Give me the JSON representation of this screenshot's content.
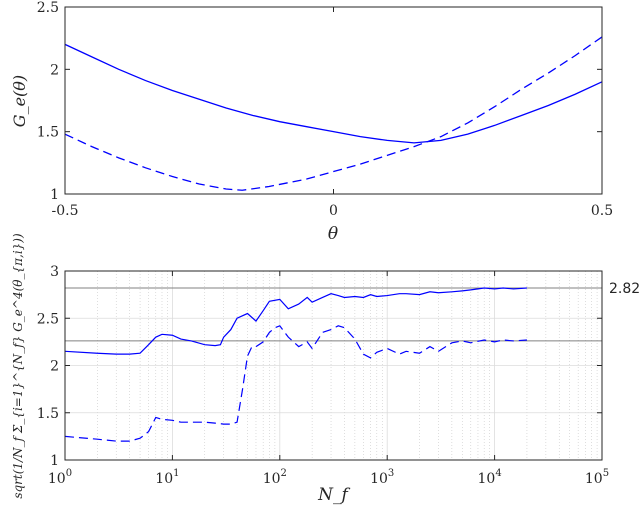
{
  "chart_data": [
    {
      "type": "line",
      "xlabel": "θ",
      "ylabel": "G_e(θ)",
      "xlim": [
        -0.5,
        0.5
      ],
      "ylim": [
        1,
        2.5
      ],
      "xticks": [
        -0.5,
        0,
        0.5
      ],
      "xtick_labels": [
        "-0.5",
        "0",
        "0.5"
      ],
      "yticks": [
        1,
        1.5,
        2,
        2.5
      ],
      "ytick_labels": [
        "1",
        "1.5",
        "2",
        "2.5"
      ],
      "grid": false,
      "color": "#0000ff",
      "series": [
        {
          "style": "solid",
          "x": [
            -0.5,
            -0.45,
            -0.4,
            -0.35,
            -0.3,
            -0.25,
            -0.2,
            -0.15,
            -0.1,
            -0.05,
            0,
            0.05,
            0.1,
            0.15,
            0.2,
            0.25,
            0.3,
            0.35,
            0.4,
            0.45,
            0.5
          ],
          "y": [
            2.2,
            2.1,
            2.0,
            1.91,
            1.83,
            1.76,
            1.69,
            1.63,
            1.58,
            1.54,
            1.5,
            1.46,
            1.43,
            1.41,
            1.43,
            1.48,
            1.55,
            1.63,
            1.71,
            1.8,
            1.9
          ]
        },
        {
          "style": "dashed",
          "x": [
            -0.5,
            -0.45,
            -0.4,
            -0.35,
            -0.3,
            -0.25,
            -0.2,
            -0.17,
            -0.12,
            -0.05,
            0,
            0.05,
            0.1,
            0.15,
            0.2,
            0.25,
            0.3,
            0.35,
            0.4,
            0.45,
            0.5
          ],
          "y": [
            1.48,
            1.38,
            1.29,
            1.21,
            1.14,
            1.08,
            1.04,
            1.03,
            1.06,
            1.12,
            1.18,
            1.24,
            1.31,
            1.38,
            1.46,
            1.57,
            1.7,
            1.84,
            1.97,
            2.11,
            2.26
          ]
        }
      ]
    },
    {
      "type": "line",
      "xlabel": "N_f",
      "ylabel": "sqrt(1/N_f Σ_{i=1}^{N_f} G_e^4(θ_{π,i}))",
      "xscale": "log",
      "xlim": [
        1,
        100000
      ],
      "ylim": [
        1,
        3
      ],
      "xtick_labels": [
        "10^0",
        "10^1",
        "10^2",
        "10^3",
        "10^4",
        "10^5"
      ],
      "yticks": [
        1,
        1.5,
        2,
        2.5,
        3
      ],
      "ytick_labels": [
        "1",
        "1.5",
        "2",
        "2.5",
        "3"
      ],
      "grid": true,
      "color": "#0000ff",
      "reference_lines": [
        {
          "y": 2.82,
          "label": "2.82",
          "color": "#808080"
        },
        {
          "y": 2.26,
          "label": "",
          "color": "#808080"
        }
      ],
      "series": [
        {
          "style": "solid",
          "x": [
            1,
            2,
            3,
            4,
            5,
            6,
            7,
            8,
            10,
            12,
            15,
            20,
            25,
            28,
            30,
            35,
            40,
            50,
            60,
            70,
            80,
            100,
            120,
            150,
            180,
            200,
            250,
            300,
            350,
            400,
            500,
            600,
            700,
            800,
            1000,
            1300,
            1500,
            2000,
            2500,
            3000,
            4000,
            5000,
            6000,
            8000,
            10000,
            12000,
            15000,
            20000
          ],
          "y": [
            2.15,
            2.13,
            2.12,
            2.12,
            2.13,
            2.22,
            2.3,
            2.33,
            2.32,
            2.28,
            2.26,
            2.22,
            2.21,
            2.22,
            2.3,
            2.38,
            2.5,
            2.55,
            2.47,
            2.58,
            2.68,
            2.7,
            2.6,
            2.65,
            2.72,
            2.67,
            2.72,
            2.76,
            2.74,
            2.72,
            2.73,
            2.72,
            2.75,
            2.73,
            2.74,
            2.76,
            2.76,
            2.75,
            2.78,
            2.77,
            2.78,
            2.79,
            2.8,
            2.82,
            2.81,
            2.82,
            2.81,
            2.82
          ]
        },
        {
          "style": "dashed",
          "x": [
            1,
            2,
            3,
            4,
            5,
            6,
            7,
            8,
            10,
            12,
            15,
            20,
            25,
            30,
            35,
            40,
            45,
            50,
            55,
            60,
            70,
            80,
            90,
            100,
            120,
            150,
            180,
            200,
            250,
            300,
            350,
            400,
            500,
            600,
            700,
            800,
            1000,
            1300,
            1500,
            2000,
            2500,
            3000,
            4000,
            5000,
            6000,
            8000,
            10000,
            12000,
            15000,
            20000
          ],
          "y": [
            1.25,
            1.22,
            1.2,
            1.2,
            1.23,
            1.3,
            1.45,
            1.43,
            1.42,
            1.4,
            1.4,
            1.4,
            1.39,
            1.38,
            1.38,
            1.4,
            1.75,
            2.1,
            2.2,
            2.2,
            2.25,
            2.35,
            2.4,
            2.42,
            2.3,
            2.2,
            2.25,
            2.18,
            2.35,
            2.38,
            2.42,
            2.4,
            2.28,
            2.12,
            2.08,
            2.14,
            2.18,
            2.12,
            2.15,
            2.13,
            2.2,
            2.15,
            2.24,
            2.26,
            2.24,
            2.27,
            2.25,
            2.27,
            2.26,
            2.27
          ]
        }
      ]
    }
  ]
}
